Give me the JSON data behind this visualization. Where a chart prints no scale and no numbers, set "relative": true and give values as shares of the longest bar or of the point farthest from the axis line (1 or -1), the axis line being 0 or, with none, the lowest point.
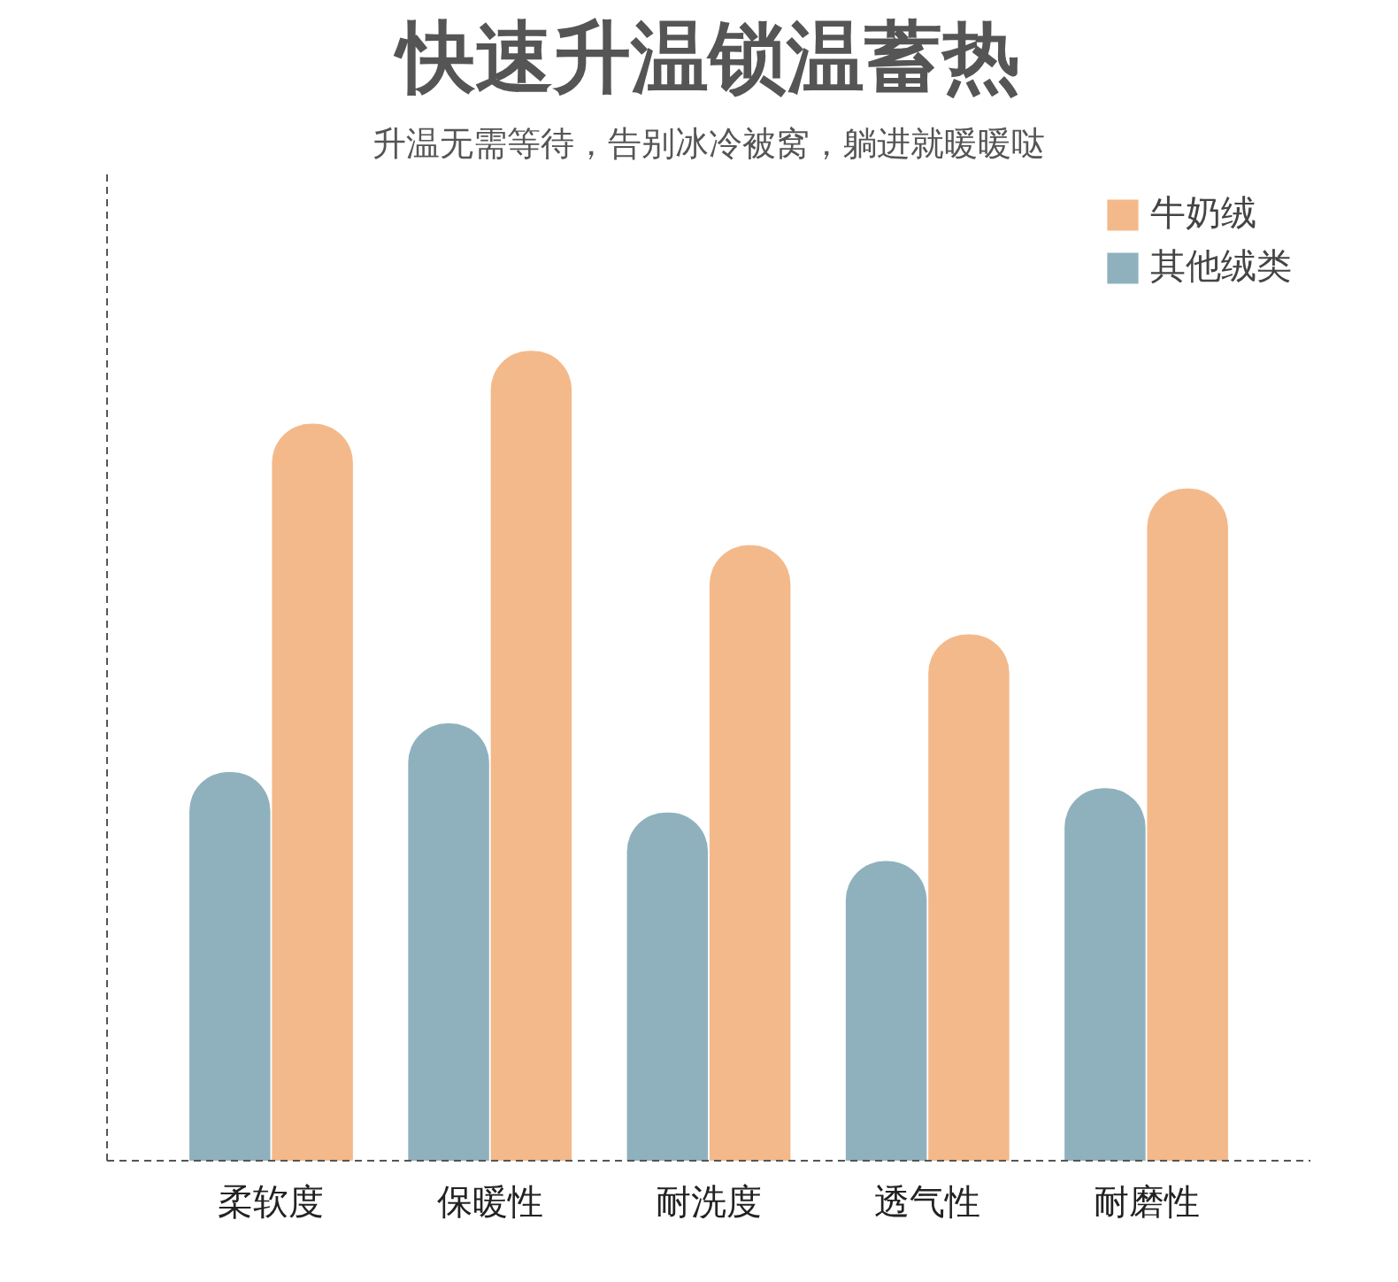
{
  "chart_data": {
    "type": "bar",
    "title": "快速升温锁温蓄热",
    "subtitle": "升温无需等待，告别冰冷被窝，躺进就暖暖哒",
    "categories": [
      "柔软度",
      "保暖性",
      "耐洗度",
      "透气性",
      "耐磨性"
    ],
    "relative": true,
    "tick_labels": "x",
    "grid": false,
    "legend": "top right",
    "series": [
      {
        "name": "其他绒类",
        "color": "#8fb1bd",
        "values": [
          0.48,
          0.54,
          0.43,
          0.37,
          0.46
        ]
      },
      {
        "name": "牛奶绒",
        "color": "#f4b98a",
        "values": [
          0.91,
          1,
          0.76,
          0.65,
          0.83
        ]
      }
    ]
  }
}
